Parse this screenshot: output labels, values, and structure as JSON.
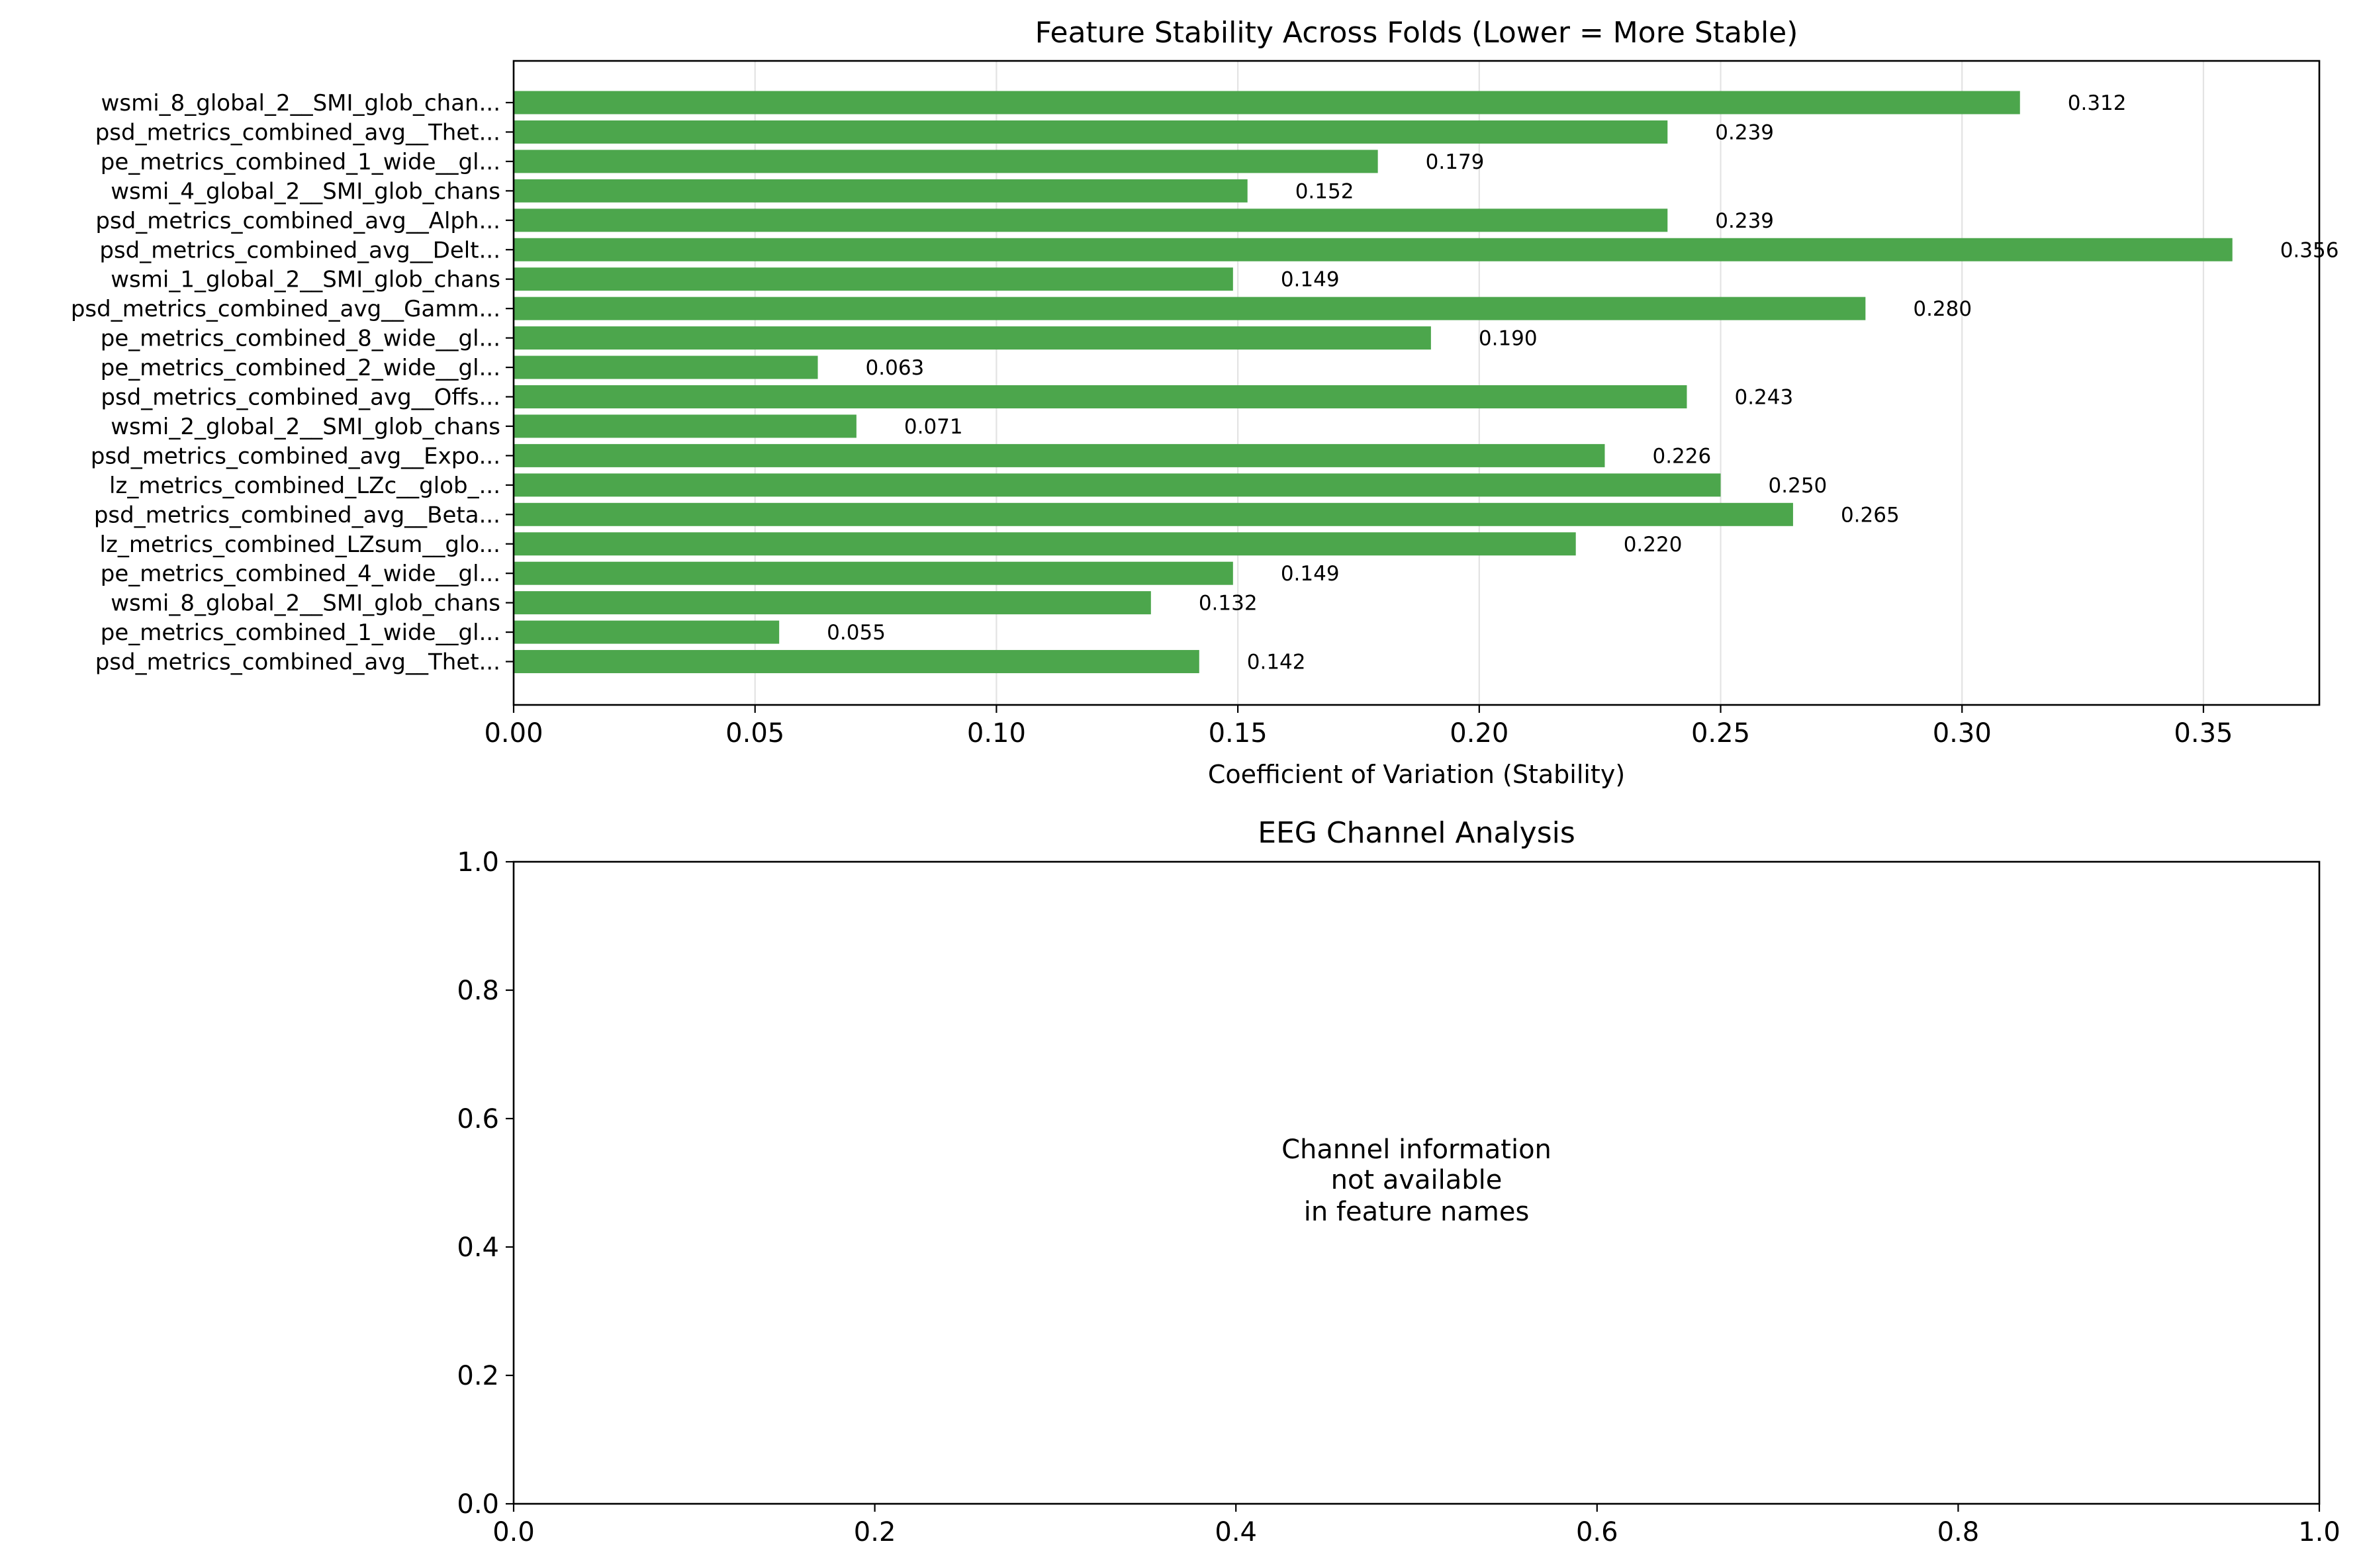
{
  "chart_data": [
    {
      "type": "bar",
      "orientation": "horizontal",
      "title": "Feature Stability Across Folds (Lower = More Stable)",
      "xlabel": "Coefficient of Variation (Stability)",
      "ylabel": "",
      "xlim": [
        0,
        0.374
      ],
      "xticks": [
        0.0,
        0.05,
        0.1,
        0.15,
        0.2,
        0.25,
        0.3,
        0.35
      ],
      "xtick_labels": [
        "0.00",
        "0.05",
        "0.10",
        "0.15",
        "0.20",
        "0.25",
        "0.30",
        "0.35"
      ],
      "grid": "vertical",
      "bar_color": "#4ca64c",
      "categories": [
        "wsmi_8_global_2__SMI_glob_chan...",
        "psd_metrics_combined_avg__Thet...",
        "pe_metrics_combined_1_wide__gl...",
        "wsmi_4_global_2__SMI_glob_chans",
        "psd_metrics_combined_avg__Alph...",
        "psd_metrics_combined_avg__Delt...",
        "wsmi_1_global_2__SMI_glob_chans",
        "psd_metrics_combined_avg__Gamm...",
        "pe_metrics_combined_8_wide__gl...",
        "pe_metrics_combined_2_wide__gl...",
        "psd_metrics_combined_avg__Offs...",
        "wsmi_2_global_2__SMI_glob_chans",
        "psd_metrics_combined_avg__Expo...",
        "lz_metrics_combined_LZc__glob_...",
        "psd_metrics_combined_avg__Beta...",
        "lz_metrics_combined_LZsum__glo...",
        "pe_metrics_combined_4_wide__gl...",
        "wsmi_8_global_2__SMI_glob_chans",
        "pe_metrics_combined_1_wide__gl...",
        "psd_metrics_combined_avg__Thet..."
      ],
      "values": [
        0.312,
        0.239,
        0.179,
        0.152,
        0.239,
        0.356,
        0.149,
        0.28,
        0.19,
        0.063,
        0.243,
        0.071,
        0.226,
        0.25,
        0.265,
        0.22,
        0.149,
        0.132,
        0.055,
        0.142
      ],
      "value_labels": [
        "0.312",
        "0.239",
        "0.179",
        "0.152",
        "0.239",
        "0.356",
        "0.149",
        "0.280",
        "0.190",
        "0.063",
        "0.243",
        "0.071",
        "0.226",
        "0.250",
        "0.265",
        "0.220",
        "0.149",
        "0.132",
        "0.055",
        "0.142"
      ]
    },
    {
      "type": "scatter",
      "title": "EEG Channel Analysis",
      "xlabel": "",
      "ylabel": "",
      "xlim": [
        0,
        1
      ],
      "ylim": [
        0,
        1
      ],
      "xtick_labels": [
        "0.0",
        "0.2",
        "0.4",
        "0.6",
        "0.8",
        "1.0"
      ],
      "ytick_labels": [
        "0.0",
        "0.2",
        "0.4",
        "0.6",
        "0.8",
        "1.0"
      ],
      "annotation": {
        "lines": [
          "Channel information",
          "not available",
          "in feature names"
        ]
      }
    }
  ]
}
